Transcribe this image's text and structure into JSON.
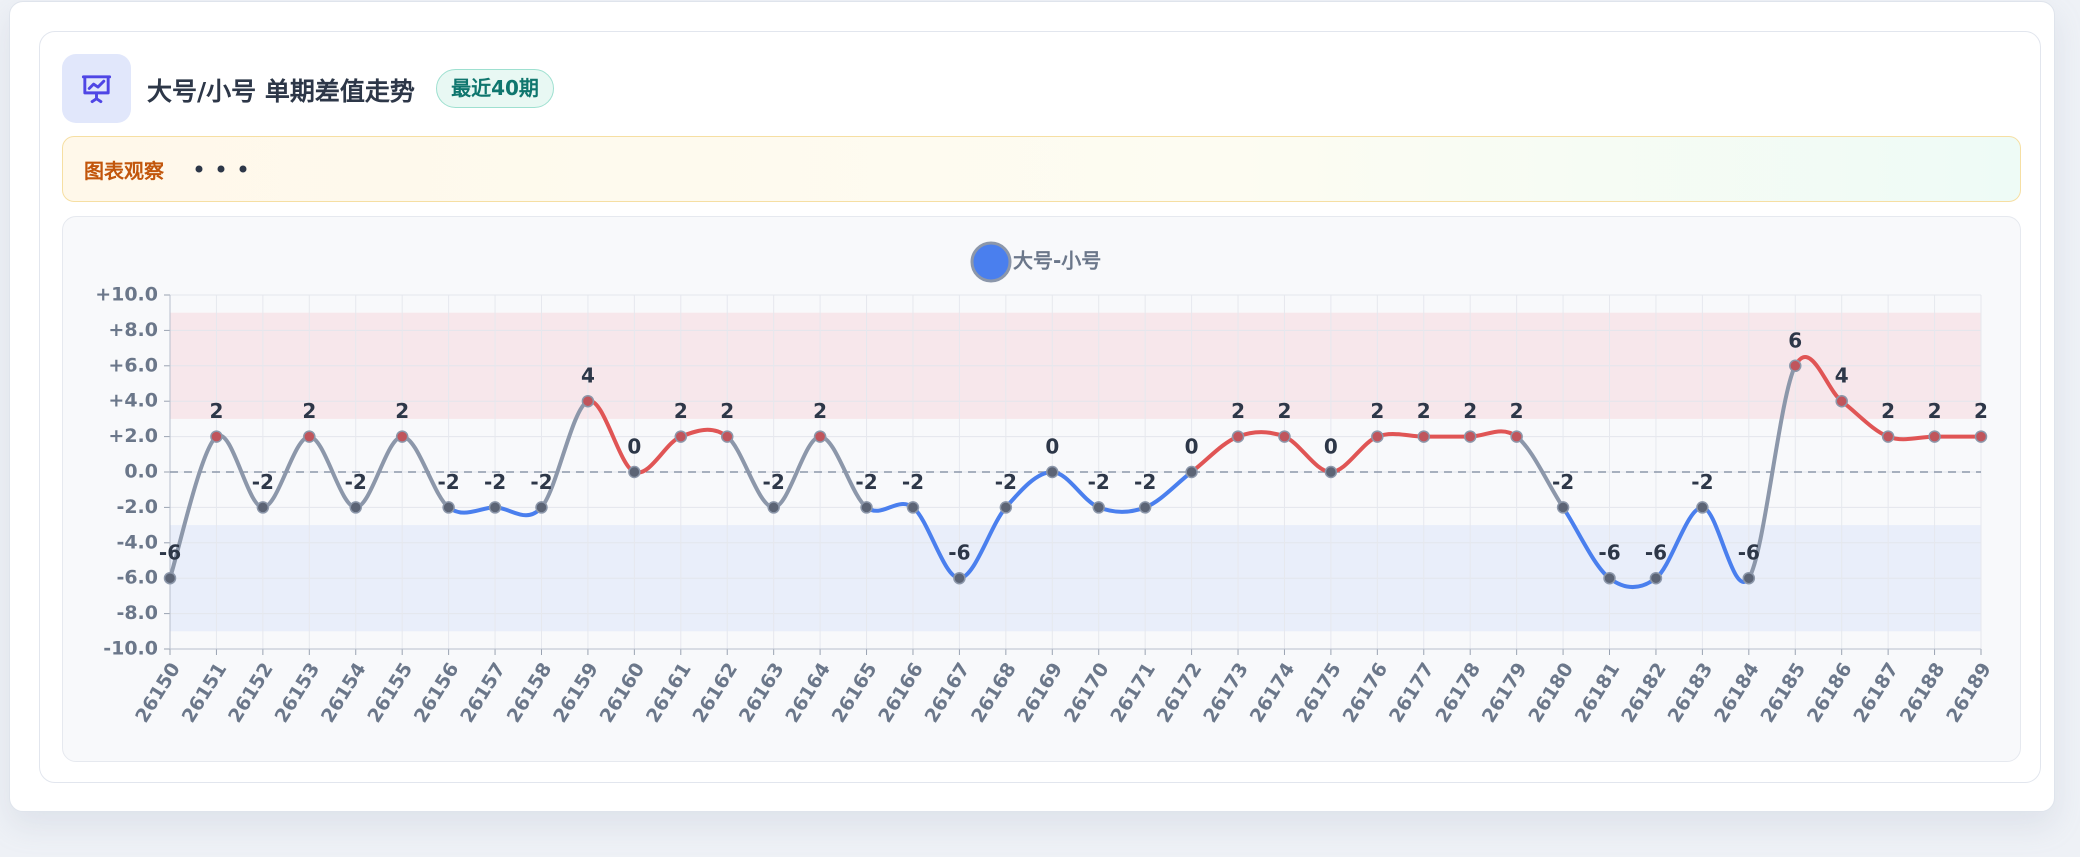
{
  "header": {
    "title": "大号/小号 单期差值走势",
    "badge": "最近40期"
  },
  "banner": {
    "label": "图表观察"
  },
  "chart_data": {
    "type": "line",
    "categories": [
      "26150",
      "26151",
      "26152",
      "26153",
      "26154",
      "26155",
      "26156",
      "26157",
      "26158",
      "26159",
      "26160",
      "26161",
      "26162",
      "26163",
      "26164",
      "26165",
      "26166",
      "26167",
      "26168",
      "26169",
      "26170",
      "26171",
      "26172",
      "26173",
      "26174",
      "26175",
      "26176",
      "26177",
      "26178",
      "26179",
      "26180",
      "26181",
      "26182",
      "26183",
      "26184",
      "26185",
      "26186",
      "26187",
      "26188",
      "26189"
    ],
    "series": [
      {
        "name": "大号-小号",
        "color": "#4a7fee",
        "values": [
          -6,
          2,
          -2,
          2,
          -2,
          2,
          -2,
          -2,
          -2,
          4,
          0,
          2,
          2,
          -2,
          2,
          -2,
          -2,
          -6,
          -2,
          0,
          -2,
          -2,
          0,
          2,
          2,
          0,
          2,
          2,
          2,
          2,
          -2,
          -6,
          -6,
          -2,
          -6,
          6,
          4,
          2,
          2,
          2
        ]
      }
    ],
    "up_color": "#e05555",
    "down_color": "#4a7fee",
    "mixed_color": "#8c97aa",
    "mark_areas": [
      {
        "from": 3,
        "to": 9,
        "color": "#f7e4e7"
      },
      {
        "from": -9,
        "to": -3,
        "color": "#e6ecf9"
      }
    ],
    "zero_line": true,
    "grid": true,
    "smooth": true,
    "ylim": [
      -10,
      10
    ],
    "yticks": [
      {
        "value": 10,
        "label": "+10.0"
      },
      {
        "value": 8,
        "label": "+8.0"
      },
      {
        "value": 6,
        "label": "+6.0"
      },
      {
        "value": 4,
        "label": "+4.0"
      },
      {
        "value": 2,
        "label": "+2.0"
      },
      {
        "value": 0,
        "label": "0.0"
      },
      {
        "value": -2,
        "label": "-2.0"
      },
      {
        "value": -4,
        "label": "-4.0"
      },
      {
        "value": -6,
        "label": "-6.0"
      },
      {
        "value": -8,
        "label": "-8.0"
      },
      {
        "value": -10,
        "label": "-10.0"
      }
    ]
  }
}
